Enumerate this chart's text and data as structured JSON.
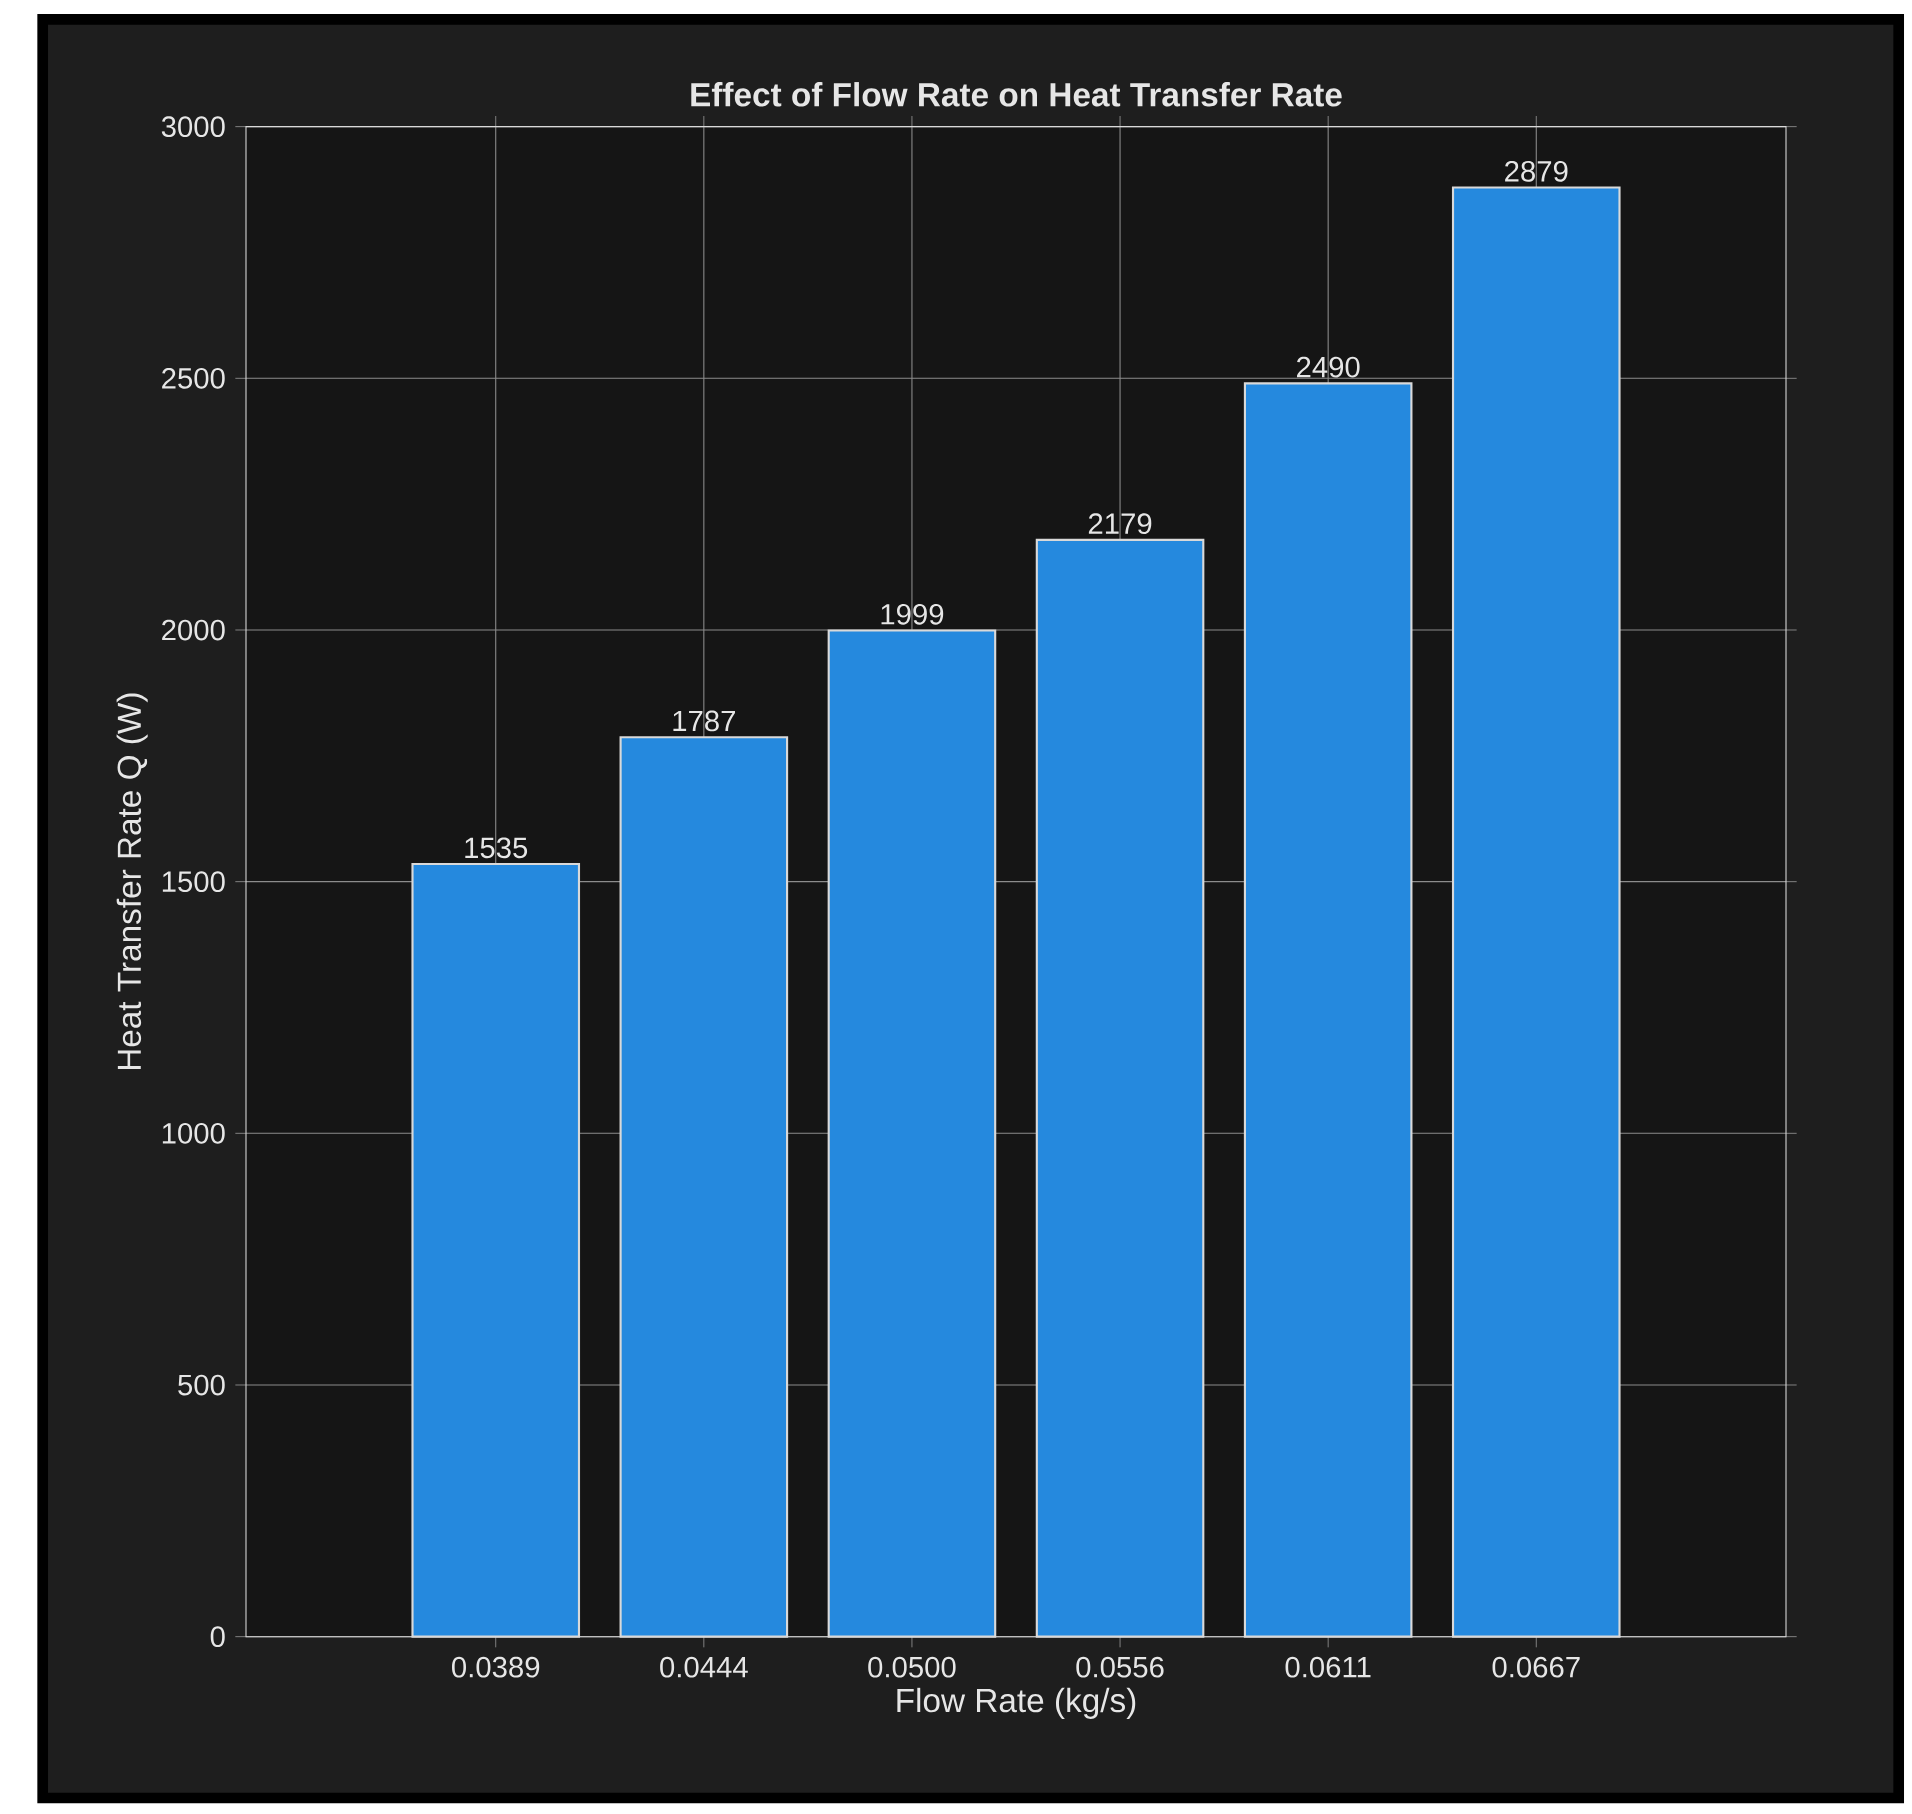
{
  "chart_data": {
    "type": "bar",
    "title": "Effect of Flow Rate on Heat Transfer Rate",
    "xlabel": "Flow Rate (kg/s)",
    "ylabel": "Heat Transfer Rate Q (W)",
    "categories": [
      "0.0389",
      "0.0444",
      "0.0500",
      "0.0556",
      "0.0611",
      "0.0667"
    ],
    "values": [
      1535,
      1787,
      1999,
      2179,
      2490,
      2879
    ],
    "color": "#2589de",
    "ylim": [
      0,
      3000
    ],
    "yticks": [
      0,
      500,
      1000,
      1500,
      2000,
      2500,
      3000
    ],
    "grid": true,
    "data_labels": true
  }
}
